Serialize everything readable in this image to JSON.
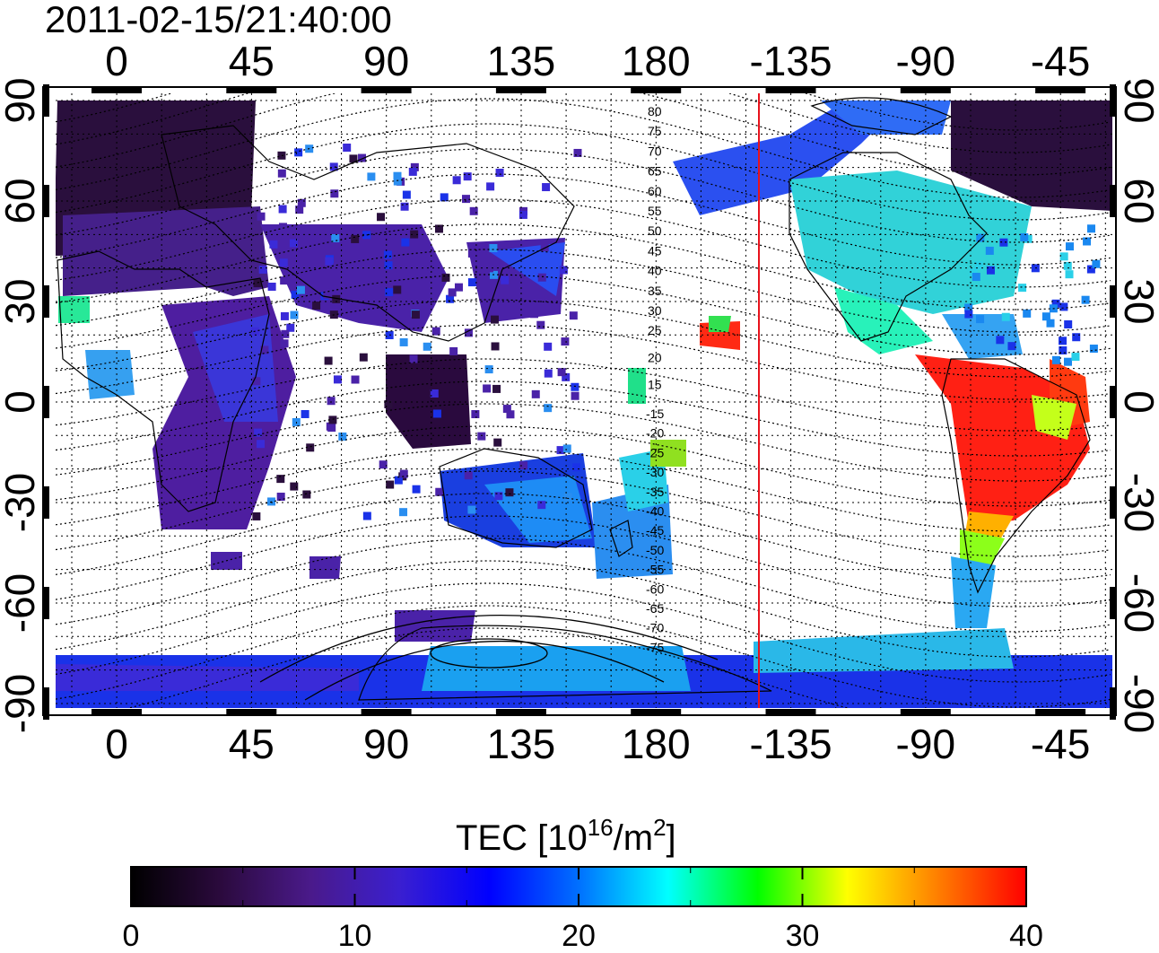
{
  "title": "2011-02-15/21:40:00",
  "map": {
    "lon_ticks": [
      "0",
      "45",
      "90",
      "135",
      "180",
      "-135",
      "-90",
      "-45"
    ],
    "lat_ticks": [
      "90",
      "60",
      "30",
      "0",
      "-30",
      "-60",
      "-90"
    ],
    "contour_labels_north": [
      "80",
      "75",
      "70",
      "65",
      "60",
      "55",
      "50",
      "45",
      "40",
      "35",
      "30",
      "25",
      "20",
      "15"
    ],
    "contour_labels_south": [
      "-15",
      "-20",
      "-25",
      "-30",
      "-35",
      "-40",
      "-45",
      "-50",
      "-55",
      "-60",
      "-65",
      "-70",
      "-75"
    ],
    "terminator_color": "#e8121c",
    "grid": "dotted"
  },
  "colorbar": {
    "label_main": "TEC  [10",
    "label_sup1": "16",
    "label_mid": "/m",
    "label_sup2": "2",
    "label_end": "]",
    "ticks": [
      "0",
      "10",
      "20",
      "30",
      "40"
    ],
    "range": [
      0,
      40
    ],
    "colors": [
      "#000000",
      "#2b0a3d",
      "#4a1a8a",
      "#3a1fd0",
      "#0000ff",
      "#0070ff",
      "#00ffff",
      "#00ff00",
      "#ffff00",
      "#ff8000",
      "#ff0000"
    ]
  }
}
